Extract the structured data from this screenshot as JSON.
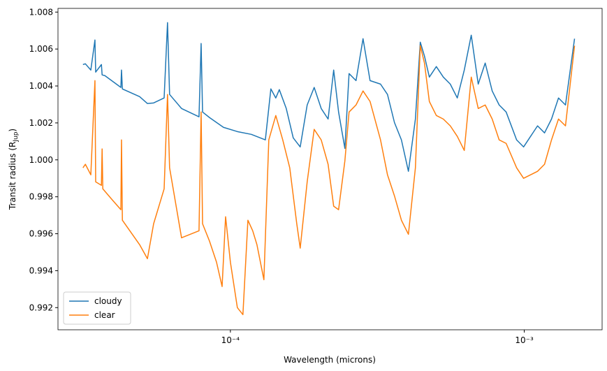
{
  "chart_data": {
    "type": "line",
    "xlabel": "Wavelength (microns)",
    "ylabel": [
      "Transit radius (R",
      "Jup",
      ")"
    ],
    "xscale": "log",
    "xlim": [
      2.59e-05,
      0.00184
    ],
    "ylim": [
      0.9908,
      1.0082
    ],
    "xticks": [
      {
        "value": 0.0001,
        "label": "10⁻⁴"
      },
      {
        "value": 0.001,
        "label": "10⁻³"
      }
    ],
    "yticks": [
      0.992,
      0.994,
      0.996,
      0.998,
      {
        "value": 1,
        "label": "1.000"
      },
      1.002,
      1.004,
      1.006,
      1.008
    ],
    "legend": "lower left",
    "series": [
      {
        "name": "cloudy",
        "color": "#1f77b4",
        "x": [
          3.15e-05,
          3.21e-05,
          3.35e-05,
          3.46e-05,
          3.48e-05,
          3.64e-05,
          3.66e-05,
          3.74e-05,
          4.24e-05,
          4.26e-05,
          4.29e-05,
          4.91e-05,
          5.22e-05,
          5.48e-05,
          5.95e-05,
          6.11e-05,
          6.21e-05,
          6.82e-05,
          7.82e-05,
          7.95e-05,
          8.04e-05,
          8.49e-05,
          9.47e-05,
          0.0001056,
          0.0001178,
          0.0001315,
          0.0001373,
          0.0001427,
          0.0001467,
          0.0001549,
          0.0001636,
          0.0001728,
          0.0001825,
          0.0001928,
          0.0002037,
          0.000215,
          0.0002246,
          0.0002334,
          0.0002452,
          0.0002534,
          0.0002676,
          0.0002827,
          0.0002987,
          0.0003242,
          0.0003424,
          0.0003616,
          0.0003819,
          0.0004034,
          0.0004261,
          0.0004427,
          0.0004574,
          0.0004753,
          0.000502,
          0.0005302,
          0.00056,
          0.0005916,
          0.0006249,
          0.00066,
          0.0006971,
          0.0007362,
          0.0007777,
          0.0008213,
          0.0008675,
          0.0009417,
          0.0009945,
          0.0010505,
          0.0011095,
          0.001172,
          0.0012378,
          0.0013074,
          0.0013809,
          0.0014825
        ],
        "values": [
          1.00516,
          1.0052,
          1.00486,
          1.00649,
          1.00475,
          1.00516,
          1.0046,
          1.00456,
          1.00392,
          1.00486,
          1.00384,
          1.00342,
          1.00305,
          1.00308,
          1.00335,
          1.00743,
          1.00354,
          1.00278,
          1.00233,
          1.0063,
          1.00259,
          1.00229,
          1.00176,
          1.00153,
          1.00138,
          1.00108,
          1.00384,
          1.00335,
          1.0038,
          1.00278,
          1.00119,
          1.0007,
          1.00297,
          1.00392,
          1.00278,
          1.00221,
          1.00486,
          1.00259,
          1.00062,
          1.00467,
          1.00429,
          1.00656,
          1.00429,
          1.0041,
          1.00354,
          1.00202,
          1.00108,
          0.99938,
          1.00221,
          1.00637,
          1.00562,
          1.00448,
          1.00505,
          1.00448,
          1.0041,
          1.00335,
          1.00486,
          1.00675,
          1.0041,
          1.00524,
          1.00373,
          1.00297,
          1.00259,
          1.00108,
          1.0007,
          1.00127,
          1.00184,
          1.00146,
          1.00221,
          1.00335,
          1.00297,
          1.00656
        ]
      },
      {
        "name": "clear",
        "color": "#ff7f0e",
        "x": [
          3.15e-05,
          3.21e-05,
          3.35e-05,
          3.46e-05,
          3.48e-05,
          3.64e-05,
          3.66e-05,
          3.68e-05,
          3.95e-05,
          4.24e-05,
          4.26e-05,
          4.29e-05,
          4.91e-05,
          5.22e-05,
          5.48e-05,
          5.95e-05,
          6.11e-05,
          6.21e-05,
          6.82e-05,
          7.82e-05,
          7.95e-05,
          8.04e-05,
          8.49e-05,
          8.97e-05,
          9.37e-05,
          9.63e-05,
          0.0001,
          0.0001056,
          0.0001103,
          0.0001147,
          0.0001191,
          0.0001231,
          0.00013,
          0.0001351,
          0.0001427,
          0.0001507,
          0.0001592,
          0.0001682,
          0.0001728,
          0.0001825,
          0.0001928,
          0.0002037,
          0.000215,
          0.0002246,
          0.0002334,
          0.0002452,
          0.0002534,
          0.0002676,
          0.0002827,
          0.0002987,
          0.0003242,
          0.0003424,
          0.0003616,
          0.0003819,
          0.0004034,
          0.0004261,
          0.0004427,
          0.0004574,
          0.0004753,
          0.000502,
          0.0005302,
          0.00056,
          0.0005916,
          0.0006249,
          0.00066,
          0.0006971,
          0.0007362,
          0.0007777,
          0.0008213,
          0.0008675,
          0.0009417,
          0.0009945,
          0.0010505,
          0.0011095,
          0.001172,
          0.0012378,
          0.0013074,
          0.0013809,
          0.0014825
        ],
        "values": [
          0.99957,
          0.99976,
          0.99919,
          1.00429,
          0.99881,
          0.99862,
          1.00059,
          0.99843,
          0.99786,
          0.9973,
          1.00108,
          0.99673,
          0.99541,
          0.99465,
          0.99654,
          0.99843,
          1.00354,
          0.99957,
          0.99578,
          0.99616,
          1.00259,
          0.99654,
          0.9956,
          0.99446,
          0.99314,
          0.99692,
          0.99446,
          0.992,
          0.99162,
          0.99673,
          0.99616,
          0.99541,
          0.99351,
          1.00108,
          1.0024,
          1.00108,
          0.99957,
          0.99654,
          0.99522,
          0.99881,
          1.00165,
          1.00108,
          0.99976,
          0.99749,
          0.9973,
          0.99994,
          1.00259,
          1.00297,
          1.00373,
          1.00316,
          1.00108,
          0.99919,
          0.99805,
          0.99673,
          0.99597,
          0.99957,
          1.00618,
          1.00524,
          1.00316,
          1.0024,
          1.00221,
          1.00184,
          1.00127,
          1.00051,
          1.00448,
          1.00278,
          1.00297,
          1.00221,
          1.00108,
          1.00089,
          0.99957,
          0.999,
          0.99919,
          0.99938,
          0.99976,
          1.00108,
          1.00221,
          1.00184,
          1.00618
        ]
      }
    ]
  }
}
